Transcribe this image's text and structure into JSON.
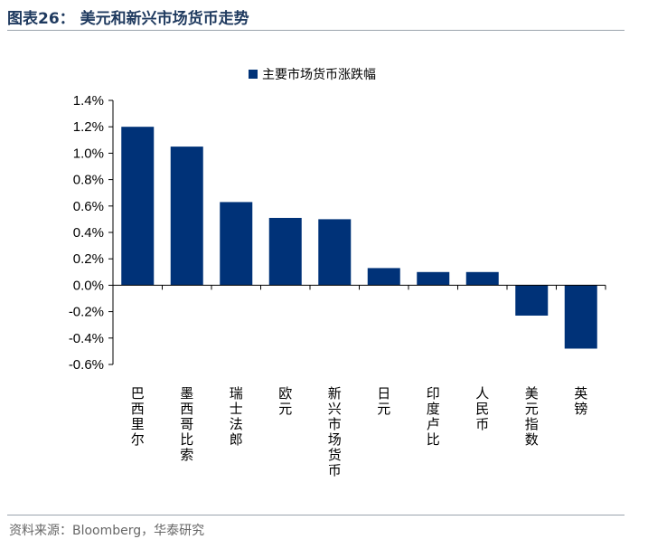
{
  "figure_title": "图表26： 美元和新兴市场货币走势",
  "source": "资料来源：Bloomberg，华泰研究",
  "chart_data": {
    "type": "bar",
    "categories": [
      "巴西里尔",
      "墨西哥比索",
      "瑞士法郎",
      "欧元",
      "新兴市场货币",
      "日元",
      "印度卢比",
      "人民币",
      "美元指数",
      "英镑"
    ],
    "series": [
      {
        "name": "主要市场货币涨跌幅",
        "values": [
          1.2,
          1.05,
          0.63,
          0.51,
          0.5,
          0.13,
          0.1,
          0.1,
          -0.23,
          -0.48
        ]
      }
    ],
    "ylim": [
      -0.6,
      1.4
    ],
    "yticks": [
      1.4,
      1.2,
      1.0,
      0.8,
      0.6,
      0.4,
      0.2,
      0.0,
      -0.2,
      -0.4,
      -0.6
    ],
    "ytick_labels": [
      "1.4%",
      "1.2%",
      "1.0%",
      "0.8%",
      "0.6%",
      "0.4%",
      "0.2%",
      "0.0%",
      "-0.2%",
      "-0.4%",
      "-0.6%"
    ],
    "bar_color": "#003278",
    "legend_position": "top-center",
    "grid": false
  }
}
